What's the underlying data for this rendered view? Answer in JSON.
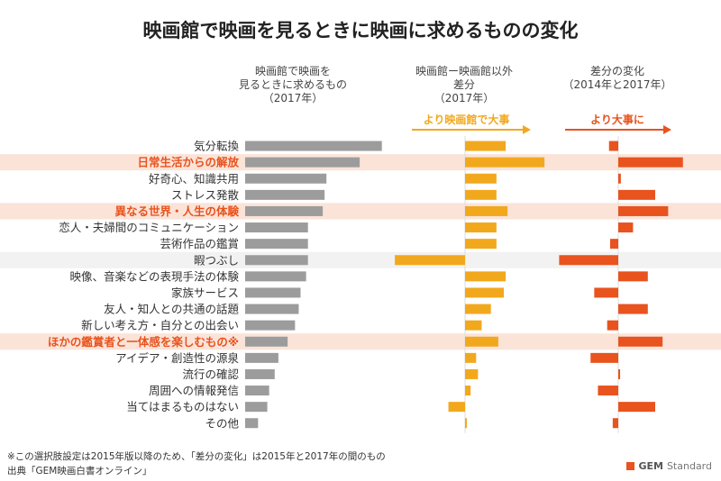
{
  "chart_data": {
    "type": "bar",
    "title": "映画館で映画を見るときに映画に求めるものの変化",
    "categories": [
      "気分転換",
      "日常生活からの解放",
      "好奇心、知識共用",
      "ストレス発散",
      "異なる世界・人生の体験",
      "恋人・夫婦間のコミュニケーション",
      "芸術作品の鑑賞",
      "暇つぶし",
      "映像、音楽などの表現手法の体験",
      "家族サービス",
      "友人・知人との共通の話題",
      "新しい考え方・自分との出会い",
      "ほかの鑑賞者と一体感を楽しむもの※",
      "アイデア・創造性の源泉",
      "流行の確認",
      "周囲への情報発信",
      "当てはまるものはない",
      "その他"
    ],
    "highlight_indices": [
      1,
      4,
      12
    ],
    "gray_band_indices": [
      7
    ],
    "series": [
      {
        "name": "映画館で映画を見るときに求めるもの（2017年）",
        "head_lines": [
          "映画館で映画を",
          "見るときに求めるもの",
          "（2017年）"
        ],
        "color": "#9c9c9c",
        "values": [
          37,
          31,
          22,
          21.5,
          21,
          17,
          17,
          17,
          16.5,
          15,
          14.5,
          13.5,
          11.5,
          9,
          8,
          6.5,
          6,
          3.5
        ]
      },
      {
        "name": "映画館ー映画館以外 差分（2017年）",
        "head_lines": [
          "映画館ー映画館以外",
          "差分",
          "（2017年）"
        ],
        "color": "#f2a81d",
        "arrow_label": "より映画館で大事",
        "values": [
          11,
          21.5,
          8.5,
          8.5,
          11.5,
          8.5,
          8.5,
          -19,
          11,
          10.5,
          7,
          4.5,
          9,
          3,
          3.5,
          1.5,
          -4.5,
          0.3
        ]
      },
      {
        "name": "差分の変化（2014年と2017年）",
        "head_lines": [
          "差分の変化",
          "（2014年と2017年）"
        ],
        "color": "#e8531e",
        "arrow_label": "より大事に",
        "values": [
          -2.5,
          17.5,
          0.7,
          10,
          13.5,
          4,
          -2.2,
          -16,
          8,
          -6.5,
          8,
          -3,
          12,
          -7.5,
          0.5,
          -5.5,
          10,
          -1.5
        ]
      }
    ]
  },
  "footnotes": [
    "※この選択肢設定は2015年版以降のため、「差分の変化」は2015年と2017年の間のもの",
    "出典「GEM映画白書オンライン」"
  ],
  "brand": {
    "bold": "GEM",
    "light": "Standard"
  },
  "colors": {
    "highlight_text": "#e8531e",
    "highlight_band": "#fbe3d8",
    "gray_band": "#f2f2f2",
    "normal_text": "#333333"
  }
}
